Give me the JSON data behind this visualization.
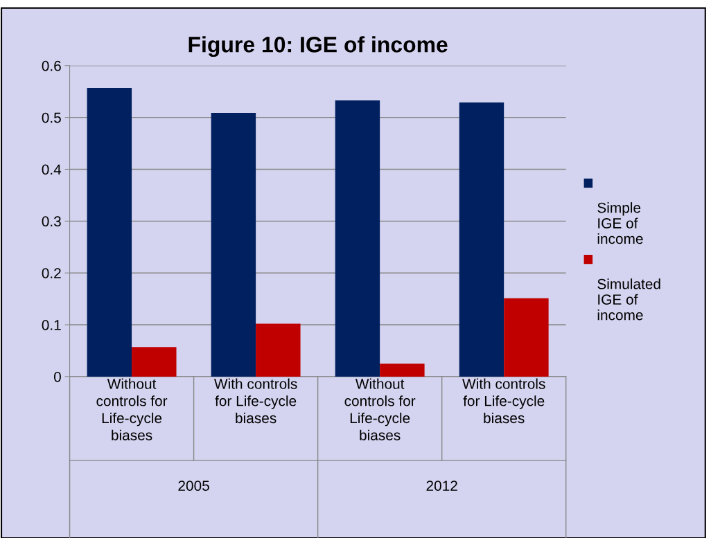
{
  "chart_data": {
    "type": "bar",
    "title": "Figure 10: IGE of income",
    "categories": [
      "Without\ncontrols for\nLife-cycle\nbiases",
      "With controls\nfor Life-cycle\nbiases",
      "Without\ncontrols for\nLife-cycle\nbiases",
      "With controls\nfor Life-cycle\nbiases"
    ],
    "series": [
      {
        "name": "Simple\nIGE of\nincome",
        "color": "#002060",
        "values": [
          0.557,
          0.509,
          0.533,
          0.529
        ]
      },
      {
        "name": "Simulated\nIGE of\nincome",
        "color": "#c00000",
        "values": [
          0.057,
          0.102,
          0.025,
          0.151
        ]
      }
    ],
    "annotations": [
      "2005",
      "2012"
    ],
    "ylim": [
      0,
      0.6
    ],
    "yticks": [
      0,
      {
        "value": 0.1,
        "label": "0.1"
      },
      {
        "value": 0.2,
        "label": "0.2"
      },
      {
        "value": 0.3,
        "label": "0.3"
      },
      {
        "value": 0.4,
        "label": "0.4"
      },
      {
        "value": 0.5,
        "label": "0.5"
      },
      {
        "value": 0.6,
        "label": "0.6"
      }
    ],
    "grid": "y",
    "legend": "right"
  }
}
